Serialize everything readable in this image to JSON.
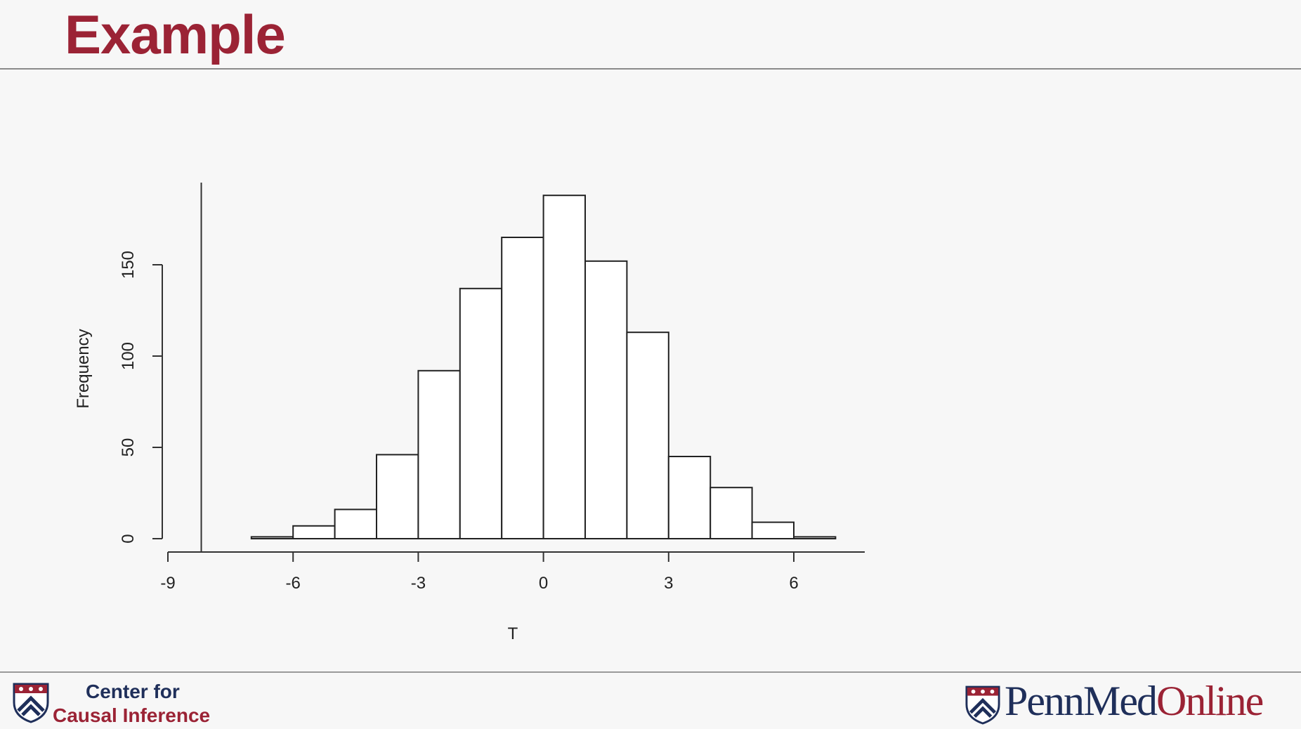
{
  "slide": {
    "title": "Example"
  },
  "footer": {
    "left_line1": "Center for",
    "left_line2": "Causal Inference",
    "right_part1": "PennMed",
    "right_part2": "Online"
  },
  "colors": {
    "title": "#9b2335",
    "navy": "#1f2f5a",
    "bar_fill": "#ffffff",
    "bar_stroke": "#222222"
  },
  "icons": [
    "penn-shield-icon"
  ],
  "chart_data": {
    "type": "bar",
    "subtype": "histogram",
    "title": "",
    "xlabel": "T",
    "ylabel": "Frequency",
    "bin_edges": [
      -7,
      -6,
      -5,
      -4,
      -3,
      -2,
      -1,
      0,
      1,
      2,
      3,
      4,
      5,
      6,
      7
    ],
    "values": [
      1,
      7,
      16,
      46,
      92,
      137,
      165,
      188,
      152,
      113,
      45,
      28,
      9,
      1
    ],
    "xlim": [
      -9,
      7.7
    ],
    "ylim": [
      0,
      195
    ],
    "xticks": [
      -9,
      -6,
      -3,
      0,
      3,
      6
    ],
    "xtick_labels": [
      "-9",
      "-6",
      "-3",
      "0",
      "3",
      "6"
    ],
    "yticks": [
      0,
      50,
      100,
      150
    ],
    "ytick_labels": [
      "0",
      "50",
      "100",
      "150"
    ],
    "reference_line_x": -8.2,
    "grid": false,
    "legend": "none"
  }
}
